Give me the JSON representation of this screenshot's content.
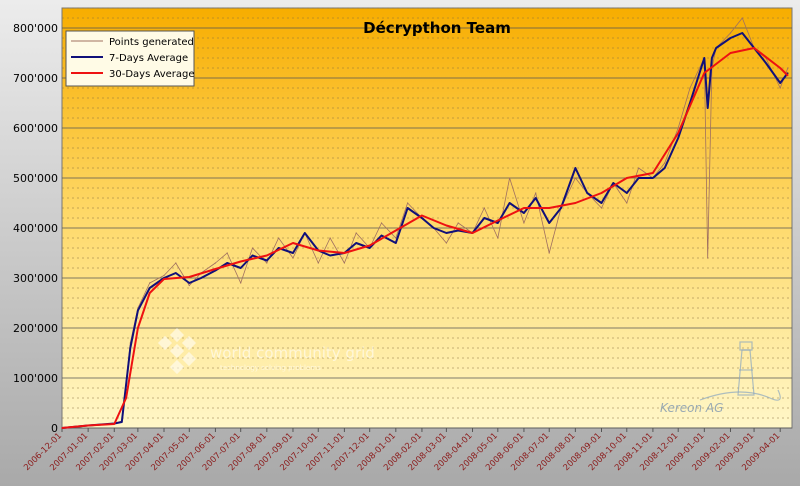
{
  "chart_data": {
    "type": "line",
    "title": "Décrypthon Team",
    "xlabel": "",
    "ylabel": "",
    "ylim": [
      0,
      840000
    ],
    "yticks": [
      "0",
      "100'000",
      "200'000",
      "300'000",
      "400'000",
      "500'000",
      "600'000",
      "700'000",
      "800'000"
    ],
    "x_tick_labels": [
      "2006-12-01",
      "2007-01-01",
      "2007-02-01",
      "2007-03-01",
      "2007-04-01",
      "2007-05-01",
      "2007-06-01",
      "2007-07-01",
      "2007-08-01",
      "2007-09-01",
      "2007-10-01",
      "2007-11-01",
      "2007-12-01",
      "2008-01-01",
      "2008-02-01",
      "2008-03-01",
      "2008-04-01",
      "2008-05-01",
      "2008-06-01",
      "2008-07-01",
      "2008-08-01",
      "2008-09-01",
      "2008-10-01",
      "2008-11-01",
      "2008-12-01",
      "2009-01-01",
      "2009-02-01",
      "2009-03-01",
      "2009-04-01"
    ],
    "grid": true,
    "legend_position": "top-left",
    "series": [
      {
        "name": "Points generated",
        "color": "#a07060",
        "x": [
          "2006-12-01",
          "2007-01-01",
          "2007-02-01",
          "2007-02-10",
          "2007-02-20",
          "2007-03-01",
          "2007-03-15",
          "2007-04-01",
          "2007-04-15",
          "2007-05-01",
          "2007-05-15",
          "2007-06-01",
          "2007-06-15",
          "2007-07-01",
          "2007-07-15",
          "2007-08-01",
          "2007-08-15",
          "2007-09-01",
          "2007-09-15",
          "2007-10-01",
          "2007-10-15",
          "2007-11-01",
          "2007-11-15",
          "2007-12-01",
          "2007-12-15",
          "2008-01-01",
          "2008-01-15",
          "2008-02-01",
          "2008-02-15",
          "2008-03-01",
          "2008-03-15",
          "2008-04-01",
          "2008-04-15",
          "2008-05-01",
          "2008-05-15",
          "2008-06-01",
          "2008-06-15",
          "2008-07-01",
          "2008-07-15",
          "2008-08-01",
          "2008-08-15",
          "2008-09-01",
          "2008-09-15",
          "2008-10-01",
          "2008-10-15",
          "2008-11-01",
          "2008-11-15",
          "2008-12-01",
          "2008-12-15",
          "2009-01-01",
          "2009-01-05",
          "2009-01-10",
          "2009-01-15",
          "2009-02-01",
          "2009-02-15",
          "2009-03-01",
          "2009-03-15",
          "2009-04-01",
          "2009-04-10"
        ],
        "values": [
          0,
          6000,
          9000,
          14000,
          170000,
          240000,
          290000,
          305000,
          330000,
          285000,
          310000,
          330000,
          350000,
          290000,
          360000,
          330000,
          380000,
          340000,
          390000,
          330000,
          380000,
          330000,
          390000,
          360000,
          410000,
          380000,
          450000,
          420000,
          400000,
          370000,
          410000,
          390000,
          440000,
          380000,
          500000,
          410000,
          470000,
          350000,
          440000,
          500000,
          470000,
          440000,
          490000,
          450000,
          520000,
          500000,
          530000,
          600000,
          680000,
          740000,
          340000,
          720000,
          760000,
          790000,
          820000,
          760000,
          740000,
          680000,
          720000
        ]
      },
      {
        "name": "7-Days Average",
        "color": "#10107a",
        "x": [
          "2006-12-01",
          "2007-01-01",
          "2007-02-01",
          "2007-02-10",
          "2007-02-20",
          "2007-03-01",
          "2007-03-15",
          "2007-04-01",
          "2007-04-15",
          "2007-05-01",
          "2007-05-15",
          "2007-06-01",
          "2007-06-15",
          "2007-07-01",
          "2007-07-15",
          "2007-08-01",
          "2007-08-15",
          "2007-09-01",
          "2007-09-15",
          "2007-10-01",
          "2007-10-15",
          "2007-11-01",
          "2007-11-15",
          "2007-12-01",
          "2007-12-15",
          "2008-01-01",
          "2008-01-15",
          "2008-02-01",
          "2008-02-15",
          "2008-03-01",
          "2008-03-15",
          "2008-04-01",
          "2008-04-15",
          "2008-05-01",
          "2008-05-15",
          "2008-06-01",
          "2008-06-15",
          "2008-07-01",
          "2008-07-15",
          "2008-08-01",
          "2008-08-15",
          "2008-09-01",
          "2008-09-15",
          "2008-10-01",
          "2008-10-15",
          "2008-11-01",
          "2008-11-15",
          "2008-12-01",
          "2008-12-15",
          "2009-01-01",
          "2009-01-05",
          "2009-01-10",
          "2009-01-15",
          "2009-02-01",
          "2009-02-15",
          "2009-03-01",
          "2009-03-15",
          "2009-04-01",
          "2009-04-10"
        ],
        "values": [
          0,
          5000,
          9000,
          12000,
          160000,
          235000,
          280000,
          300000,
          310000,
          290000,
          300000,
          315000,
          330000,
          320000,
          345000,
          335000,
          360000,
          350000,
          390000,
          355000,
          345000,
          350000,
          370000,
          360000,
          385000,
          370000,
          440000,
          420000,
          400000,
          390000,
          395000,
          390000,
          420000,
          410000,
          450000,
          430000,
          460000,
          410000,
          440000,
          520000,
          470000,
          450000,
          490000,
          470000,
          500000,
          500000,
          520000,
          580000,
          650000,
          740000,
          640000,
          740000,
          760000,
          780000,
          790000,
          760000,
          730000,
          690000,
          710000
        ]
      },
      {
        "name": "30-Days Average",
        "color": "#ee1111",
        "x": [
          "2006-12-01",
          "2007-01-01",
          "2007-02-01",
          "2007-02-15",
          "2007-03-01",
          "2007-03-15",
          "2007-04-01",
          "2007-05-01",
          "2007-06-01",
          "2007-07-01",
          "2007-08-01",
          "2007-09-01",
          "2007-10-01",
          "2007-11-01",
          "2007-12-01",
          "2008-01-01",
          "2008-02-01",
          "2008-03-01",
          "2008-04-01",
          "2008-05-01",
          "2008-06-01",
          "2008-07-01",
          "2008-08-01",
          "2008-09-01",
          "2008-10-01",
          "2008-11-01",
          "2008-12-01",
          "2009-01-01",
          "2009-02-01",
          "2009-03-01",
          "2009-04-01",
          "2009-04-10"
        ],
        "values": [
          0,
          5000,
          8000,
          60000,
          200000,
          270000,
          298000,
          302000,
          318000,
          333000,
          345000,
          370000,
          355000,
          350000,
          365000,
          395000,
          425000,
          405000,
          390000,
          415000,
          440000,
          440000,
          450000,
          470000,
          500000,
          510000,
          590000,
          710000,
          750000,
          760000,
          720000,
          705000
        ]
      }
    ]
  },
  "watermark": {
    "left": "world community grid",
    "left_sub": "technology solving problems",
    "right": "Kereon AG"
  }
}
